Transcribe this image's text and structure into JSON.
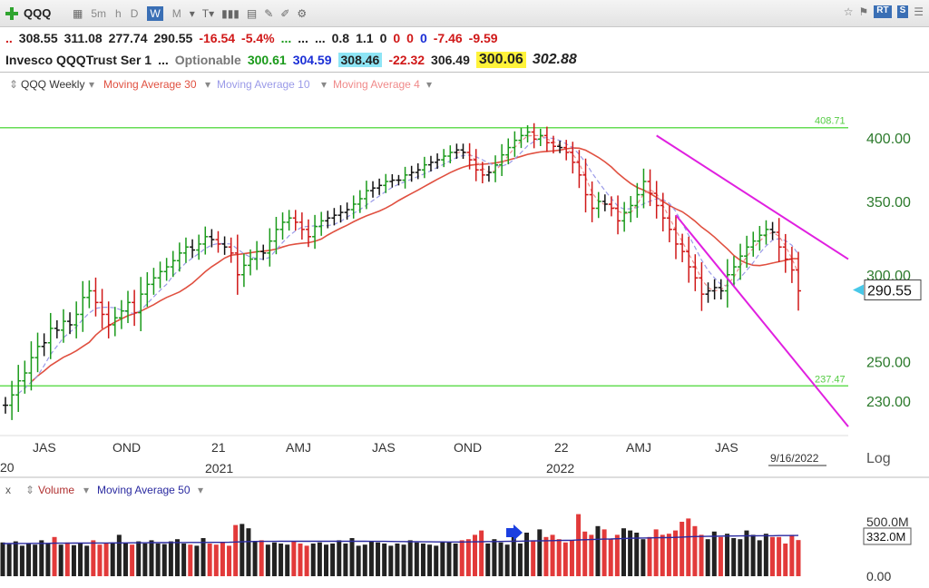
{
  "toolbar": {
    "symbol": "QQQ",
    "timeframes": [
      "d",
      "5m",
      "h",
      "D",
      "W",
      "M"
    ],
    "active_timeframe": "W",
    "badges": [
      "RT",
      "S"
    ],
    "icons": [
      "add-icon",
      "dropdown-icon",
      "bar-style-icon",
      "volume-icon",
      "chart-icon",
      "pencil-icon",
      "edit-icon",
      "settings-icon",
      "star-icon",
      "flag-icon",
      "options-icon"
    ]
  },
  "quote_row1": {
    "open": "308.55",
    "high": "311.08",
    "low": "277.74",
    "close": "290.55",
    "change": "-16.54",
    "change_pct": "-5.4%",
    "dots_a": "...",
    "dots_b": "...",
    "dots_c": "...",
    "v1": "0.8",
    "v2": "1.1",
    "z1": "0",
    "z2": "0",
    "z3": "0",
    "z4": "0",
    "n1": "-7.46",
    "n2": "-9.59"
  },
  "quote_row2": {
    "name": "Invesco QQQTrust Ser 1",
    "dots": "...",
    "optionable": "Optionable",
    "v1": "300.61",
    "v2": "304.59",
    "v3": "308.46",
    "v4": "-22.32",
    "v5": "306.49",
    "v6": "300.06",
    "v7": "302.88"
  },
  "colors": {
    "up_bar": "#1a9a1a",
    "down_bar": "#d01818",
    "neutral_bar": "#111111",
    "ma30": "#e05040",
    "ma10": "#9a9ae8",
    "ma4": "#f08a8a",
    "trendline": "#e020e0",
    "hline": "#66dd55",
    "vol_red": "#e23a3a",
    "vol_black": "#222222",
    "vol_ma": "#2a2aa0"
  },
  "chart_data": {
    "type": "line",
    "legend": {
      "symbol": "QQQ Weekly",
      "ma30": "Moving Average 30",
      "ma10": "Moving Average 10",
      "ma4": "Moving Average 4"
    },
    "price_axis": {
      "scale": "log",
      "range": [
        215,
        415
      ],
      "labels": [
        {
          "value": 400,
          "text": "400.00"
        },
        {
          "value": 350,
          "text": "350.00"
        },
        {
          "value": 300,
          "text": "300.00"
        },
        {
          "value": 250,
          "text": "250.00"
        },
        {
          "value": 230,
          "text": "230.00"
        }
      ],
      "label_word": "Log",
      "current_price": "290.55"
    },
    "horizontal_lines": [
      {
        "value": 408.71,
        "text": "408.71"
      },
      {
        "value": 237.47,
        "text": "237.47"
      }
    ],
    "x_labels": {
      "months": [
        "JAS",
        "OND",
        "21",
        "AMJ",
        "JAS",
        "OND",
        "22",
        "AMJ",
        "JAS"
      ],
      "years": [
        "20",
        "2021",
        "2022"
      ],
      "date": "9/16/2022"
    },
    "trendlines": [
      {
        "from": {
          "week": 101,
          "value": 402
        },
        "to": {
          "week": 153,
          "value": 310
        }
      },
      {
        "from": {
          "week": 104,
          "value": 340
        },
        "to": {
          "week": 153,
          "value": 218
        }
      }
    ],
    "weekly_close": [
      228,
      233,
      240,
      244,
      252,
      258,
      260,
      268,
      267,
      272,
      270,
      276,
      286,
      290,
      283,
      276,
      270,
      274,
      278,
      283,
      277,
      288,
      294,
      298,
      302,
      305,
      309,
      314,
      318,
      316,
      320,
      325,
      323,
      320,
      318,
      314,
      300,
      306,
      310,
      315,
      314,
      322,
      330,
      335,
      338,
      335,
      330,
      325,
      332,
      336,
      338,
      340,
      342,
      344,
      348,
      352,
      358,
      360,
      362,
      365,
      366,
      366,
      370,
      372,
      374,
      378,
      380,
      382,
      385,
      388,
      390,
      388,
      382,
      374,
      370,
      372,
      378,
      386,
      392,
      398,
      402,
      405,
      399,
      402,
      396,
      393,
      392,
      388,
      380,
      370,
      355,
      345,
      350,
      348,
      345,
      336,
      342,
      347,
      355,
      365,
      356,
      347,
      338,
      330,
      320,
      315,
      305,
      298,
      288,
      290,
      292,
      290,
      300,
      305,
      312,
      318,
      322,
      326,
      330,
      328,
      318,
      310,
      303,
      290
    ]
  },
  "volume_panel": {
    "close_button": "x",
    "volume_label": "Volume",
    "ma_label": "Moving Average 50",
    "axis_labels": [
      "500.0M",
      "0.00"
    ],
    "current_volume": "332.0M",
    "volumes_m": [
      310,
      295,
      320,
      280,
      300,
      290,
      330,
      300,
      360,
      290,
      310,
      285,
      300,
      280,
      330,
      290,
      300,
      310,
      380,
      305,
      290,
      320,
      300,
      330,
      300,
      295,
      320,
      340,
      300,
      290,
      280,
      350,
      300,
      290,
      310,
      280,
      470,
      480,
      440,
      320,
      330,
      290,
      310,
      300,
      290,
      320,
      300,
      280,
      300,
      310,
      290,
      300,
      330,
      300,
      350,
      280,
      290,
      320,
      310,
      300,
      280,
      300,
      290,
      330,
      310,
      300,
      290,
      280,
      320,
      310,
      300,
      330,
      340,
      380,
      420,
      300,
      340,
      310,
      290,
      380,
      300,
      400,
      330,
      430,
      360,
      380,
      340,
      310,
      330,
      570,
      410,
      380,
      460,
      430,
      340,
      380,
      440,
      420,
      400,
      340,
      360,
      430,
      380,
      390,
      420,
      500,
      530,
      460,
      380,
      340,
      410,
      360,
      390,
      350,
      340,
      420,
      380,
      330,
      390,
      360,
      360,
      300,
      380,
      332
    ],
    "volume_ma_m": [
      300,
      300,
      301,
      301,
      301,
      302,
      302,
      302,
      303,
      303,
      303,
      304,
      304,
      304,
      305,
      305,
      305,
      306,
      306,
      306,
      307,
      307,
      307,
      308,
      308,
      308,
      309,
      309,
      309,
      310,
      310,
      310,
      311,
      311,
      311,
      312,
      314,
      316,
      318,
      319,
      320,
      320,
      320,
      321,
      321,
      321,
      321,
      321,
      321,
      321,
      321,
      321,
      321,
      321,
      321,
      321,
      321,
      320,
      320,
      320,
      319,
      318,
      318,
      317,
      317,
      316,
      316,
      315,
      315,
      314,
      314,
      314,
      315,
      316,
      317,
      318,
      318,
      319,
      320,
      321,
      322,
      323,
      324,
      325,
      326,
      327,
      328,
      329,
      330,
      333,
      335,
      337,
      339,
      341,
      342,
      344,
      346,
      348,
      350,
      351,
      352,
      353,
      354,
      355,
      357,
      359,
      362,
      364,
      365,
      366,
      367,
      368,
      369,
      369,
      370,
      371,
      371,
      372,
      372,
      372,
      373,
      373,
      373,
      374
    ],
    "arrow": "blue-arrow-icon"
  }
}
